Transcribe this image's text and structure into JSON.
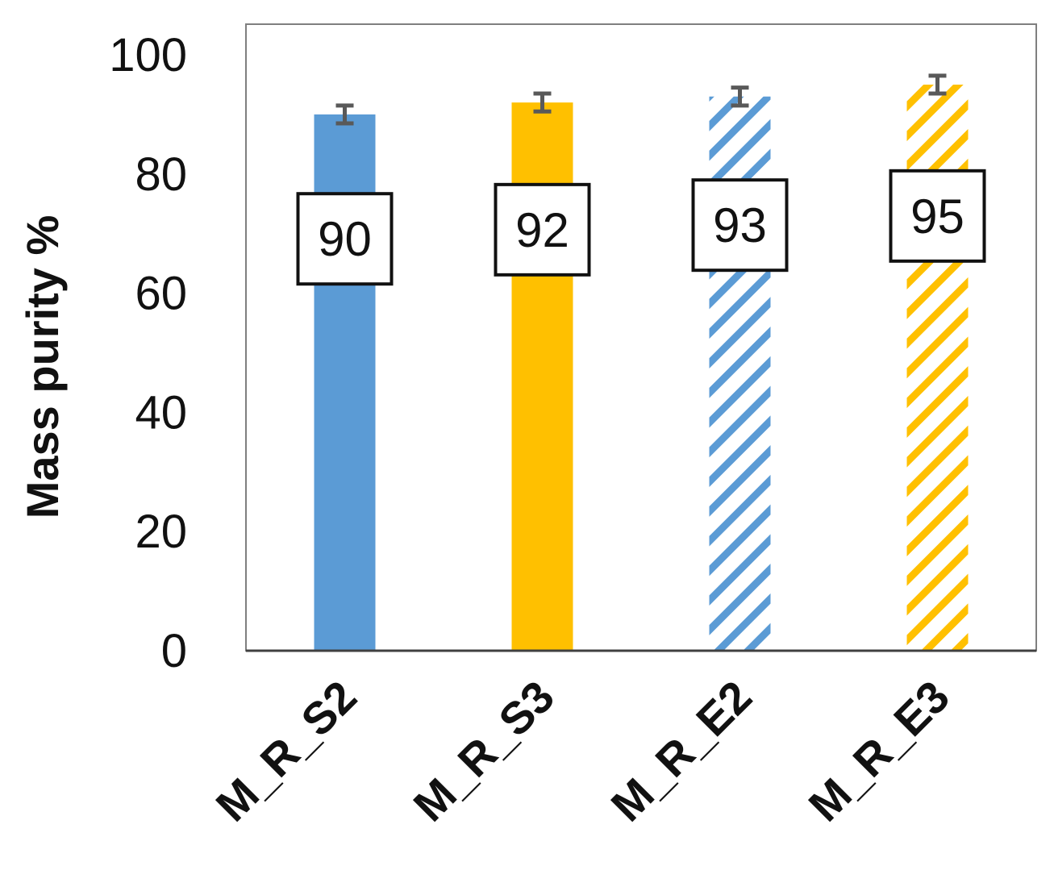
{
  "chart_data": {
    "type": "bar",
    "title": "",
    "xlabel": "",
    "ylabel": "Mass purity %",
    "ylim": [
      0,
      100
    ],
    "yticks": [
      0,
      20,
      40,
      60,
      80,
      100
    ],
    "grid": false,
    "legend": "none",
    "categories": [
      "M_R_S2",
      "M_R_S3",
      "M_R_E2",
      "M_R_E3"
    ],
    "values": [
      90,
      92,
      93,
      95
    ],
    "data_labels": [
      "90",
      "92",
      "93",
      "95"
    ],
    "error": [
      1.5,
      1.5,
      1.5,
      1.5
    ],
    "colors": [
      "#5b9bd5",
      "#ffc000",
      "#5b9bd5",
      "#ffc000"
    ],
    "patterns": [
      "solid",
      "solid",
      "hatched",
      "hatched"
    ],
    "error_color": "#595959"
  }
}
